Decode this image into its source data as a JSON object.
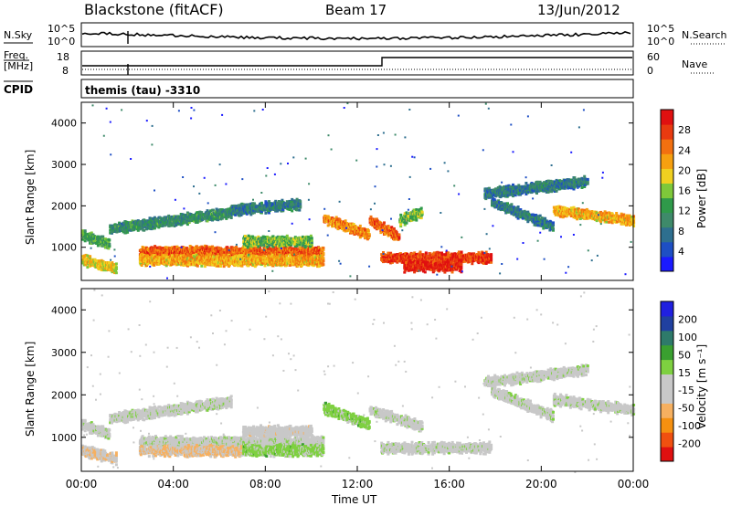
{
  "header": {
    "station": "Blackstone (fitACF)",
    "beam": "Beam 17",
    "date": "13/Jun/2012"
  },
  "sky_panel": {
    "left_label": "N.Sky",
    "right_label": "N.Search",
    "y_ticks_left": [
      "10^5",
      "10^0"
    ],
    "y_ticks_right": [
      "10^5",
      "10^0"
    ]
  },
  "freq_panel": {
    "left_label_line1": "Freq.",
    "left_label_line2": "[MHz]",
    "right_label": "Nave",
    "y_ticks_left": [
      "18",
      "8"
    ],
    "y_ticks_right": [
      "60",
      "0"
    ]
  },
  "cpid": {
    "label": "CPID",
    "value": "themis (tau) -3310"
  },
  "colors": {
    "power": [
      "#1a1aff",
      "#1e4fc4",
      "#2e6f8f",
      "#3e8a6a",
      "#2f9a4a",
      "#7ec83a",
      "#f0d020",
      "#f6a010",
      "#f27010",
      "#e83a10",
      "#e01010"
    ],
    "velocity": [
      "#e01010",
      "#f05010",
      "#f59010",
      "#f6b060",
      "#c8c8c8",
      "#c8c8c8",
      "#7ed040",
      "#3aa030",
      "#2e7a6a",
      "#2040a0",
      "#2020e0"
    ]
  },
  "chart_data": [
    {
      "type": "heatmap",
      "name": "power",
      "ylabel": "Slant Range [km]",
      "y_ticks": [
        "1000",
        "2000",
        "3000",
        "4000"
      ],
      "ylim": [
        200,
        4500
      ],
      "colorbar_label": "Power [dB]",
      "colorbar_ticks": [
        "4",
        "8",
        "12",
        "16",
        "20",
        "24",
        "28"
      ],
      "colorbar_range": [
        0,
        30
      ],
      "bands": [
        {
          "t0": 0.0,
          "t1": 1.2,
          "r0": 1300,
          "r1": 1080,
          "v": 12
        },
        {
          "t0": 1.2,
          "t1": 6.5,
          "r0": 1450,
          "r1": 1850,
          "v": 10
        },
        {
          "t0": 6.5,
          "t1": 9.5,
          "r0": 1900,
          "r1": 2050,
          "v": 8
        },
        {
          "t0": 0.0,
          "t1": 1.5,
          "r0": 700,
          "r1": 500,
          "v": 18
        },
        {
          "t0": 2.5,
          "t1": 10.5,
          "r0": 900,
          "r1": 900,
          "v": 24
        },
        {
          "t0": 2.5,
          "t1": 10.5,
          "r0": 700,
          "r1": 680,
          "v": 20
        },
        {
          "t0": 7.0,
          "t1": 10.0,
          "r0": 1150,
          "r1": 1150,
          "v": 14
        },
        {
          "t0": 10.5,
          "t1": 12.5,
          "r0": 1700,
          "r1": 1300,
          "v": 22
        },
        {
          "t0": 12.5,
          "t1": 13.8,
          "r0": 1650,
          "r1": 1250,
          "v": 24
        },
        {
          "t0": 13.8,
          "t1": 14.8,
          "r0": 1650,
          "r1": 1850,
          "v": 14
        },
        {
          "t0": 13.0,
          "t1": 17.8,
          "r0": 750,
          "r1": 760,
          "v": 26
        },
        {
          "t0": 14.0,
          "t1": 16.5,
          "r0": 550,
          "r1": 550,
          "v": 28
        },
        {
          "t0": 17.8,
          "t1": 20.5,
          "r0": 2100,
          "r1": 1500,
          "v": 8
        },
        {
          "t0": 20.5,
          "t1": 24.0,
          "r0": 1900,
          "r1": 1650,
          "v": 20
        },
        {
          "t0": 17.5,
          "t1": 22.0,
          "r0": 2300,
          "r1": 2600,
          "v": 8
        }
      ]
    },
    {
      "type": "heatmap",
      "name": "velocity",
      "xlabel": "Time UT",
      "x_ticks": [
        "00:00",
        "04:00",
        "08:00",
        "12:00",
        "16:00",
        "20:00",
        "00:00"
      ],
      "xlim": [
        0,
        24
      ],
      "ylabel": "Slant Range [km]",
      "y_ticks": [
        "1000",
        "2000",
        "3000",
        "4000"
      ],
      "ylim": [
        200,
        4500
      ],
      "colorbar_label": "Velocity [m s⁻¹]",
      "colorbar_ticks": [
        "200",
        "100",
        "50",
        "15",
        "-15",
        "-50",
        "-100",
        "-200"
      ],
      "colorbar_range": [
        -250,
        250
      ],
      "bands": [
        {
          "t0": 0.0,
          "t1": 1.2,
          "r0": 1300,
          "r1": 1080,
          "v": 0
        },
        {
          "t0": 1.2,
          "t1": 6.5,
          "r0": 1450,
          "r1": 1850,
          "v": 0
        },
        {
          "t0": 0.0,
          "t1": 1.5,
          "r0": 700,
          "r1": 500,
          "v": -60
        },
        {
          "t0": 2.5,
          "t1": 10.5,
          "r0": 900,
          "r1": 900,
          "v": 0
        },
        {
          "t0": 2.5,
          "t1": 7.0,
          "r0": 700,
          "r1": 680,
          "v": -70
        },
        {
          "t0": 7.0,
          "t1": 10.5,
          "r0": 700,
          "r1": 700,
          "v": 40
        },
        {
          "t0": 7.0,
          "t1": 10.0,
          "r0": 1150,
          "r1": 1150,
          "v": -40
        },
        {
          "t0": 10.5,
          "t1": 12.5,
          "r0": 1700,
          "r1": 1300,
          "v": 40
        },
        {
          "t0": 12.5,
          "t1": 14.8,
          "r0": 1650,
          "r1": 1250,
          "v": 0
        },
        {
          "t0": 13.0,
          "t1": 17.8,
          "r0": 750,
          "r1": 760,
          "v": 0
        },
        {
          "t0": 17.8,
          "t1": 20.5,
          "r0": 2100,
          "r1": 1500,
          "v": 0
        },
        {
          "t0": 20.5,
          "t1": 24.0,
          "r0": 1900,
          "r1": 1650,
          "v": 0
        },
        {
          "t0": 17.5,
          "t1": 22.0,
          "r0": 2300,
          "r1": 2600,
          "v": 0
        }
      ]
    }
  ]
}
